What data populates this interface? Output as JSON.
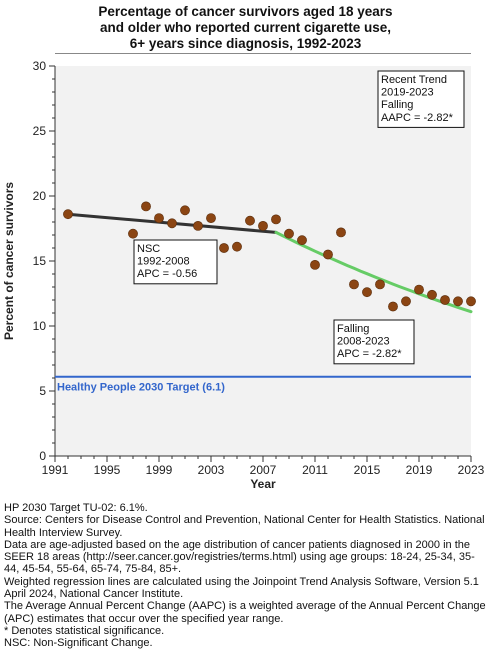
{
  "title_lines": [
    "Percentage of cancer survivors aged 18 years",
    "and older who reported current cigarette use,",
    "6+ years since diagnosis,  1992-2023"
  ],
  "chart_data": {
    "type": "scatter",
    "xlabel": "Year",
    "ylabel": "Percent of cancer survivors",
    "xlim": [
      1991,
      2023
    ],
    "ylim": [
      0,
      30
    ],
    "xticks": [
      1991,
      1995,
      1999,
      2003,
      2007,
      2011,
      2015,
      2019,
      2023
    ],
    "yticks": [
      0,
      5,
      10,
      15,
      20,
      25,
      30
    ],
    "points": [
      {
        "x": 1992,
        "y": 18.6
      },
      {
        "x": 1997,
        "y": 17.1
      },
      {
        "x": 1998,
        "y": 19.2
      },
      {
        "x": 1999,
        "y": 18.3
      },
      {
        "x": 2000,
        "y": 17.9
      },
      {
        "x": 2001,
        "y": 18.9
      },
      {
        "x": 2002,
        "y": 17.7
      },
      {
        "x": 2003,
        "y": 18.3
      },
      {
        "x": 2004,
        "y": 16.0
      },
      {
        "x": 2005,
        "y": 16.1
      },
      {
        "x": 2006,
        "y": 18.1
      },
      {
        "x": 2007,
        "y": 17.7
      },
      {
        "x": 2008,
        "y": 18.2
      },
      {
        "x": 2009,
        "y": 17.1
      },
      {
        "x": 2010,
        "y": 16.6
      },
      {
        "x": 2011,
        "y": 14.7
      },
      {
        "x": 2012,
        "y": 15.5
      },
      {
        "x": 2013,
        "y": 17.2
      },
      {
        "x": 2014,
        "y": 13.2
      },
      {
        "x": 2015,
        "y": 12.6
      },
      {
        "x": 2016,
        "y": 13.2
      },
      {
        "x": 2017,
        "y": 11.5
      },
      {
        "x": 2018,
        "y": 11.9
      },
      {
        "x": 2019,
        "y": 12.8
      },
      {
        "x": 2020,
        "y": 12.4
      },
      {
        "x": 2021,
        "y": 12.0
      },
      {
        "x": 2022,
        "y": 11.9
      },
      {
        "x": 2023,
        "y": 11.9
      }
    ],
    "trend_segments": [
      {
        "start": 1992,
        "end": 2008,
        "y_start": 18.6,
        "y_end": 17.2,
        "color": "#333333"
      },
      {
        "start": 2008,
        "end": 2023,
        "y_start": 17.2,
        "y_end": 11.1,
        "color": "#66cc66",
        "curve": true
      }
    ],
    "target": {
      "value": 6.1,
      "label": "Healthy People 2030 Target (6.1)",
      "color": "#3366cc"
    },
    "annotations": [
      {
        "lines": [
          "Recent Trend",
          "2019-2023",
          "Falling",
          "AAPC = -2.82*"
        ]
      },
      {
        "lines": [
          "NSC",
          "1992-2008",
          "APC = -0.56"
        ]
      },
      {
        "lines": [
          "Falling",
          "2008-2023",
          "APC = -2.82*"
        ]
      }
    ],
    "point_color": "#8b4513",
    "plot_background": "#f2f2f2",
    "grid": false
  },
  "footnotes": [
    "HP 2030 Target TU-02: 6.1%.",
    "Source: Centers for Disease Control and Prevention, National Center for Health Statistics. National Health Interview Survey.",
    "Data are age-adjusted based on the age distribution of cancer patients diagnosed in 2000 in the SEER 18 areas (http://seer.cancer.gov/registries/terms.html) using age groups: 18-24, 25-34, 35-44, 45-54, 55-64, 65-74, 75-84, 85+.",
    "Weighted regression lines are calculated using the Joinpoint Trend Analysis Software, Version 5.1 April 2024, National Cancer Institute.",
    "The Average Annual Percent Change (AAPC) is a weighted average of the Annual Percent Change (APC) estimates that occur over the specified year range.",
    "* Denotes statistical significance.",
    "NSC: Non-Significant Change."
  ]
}
